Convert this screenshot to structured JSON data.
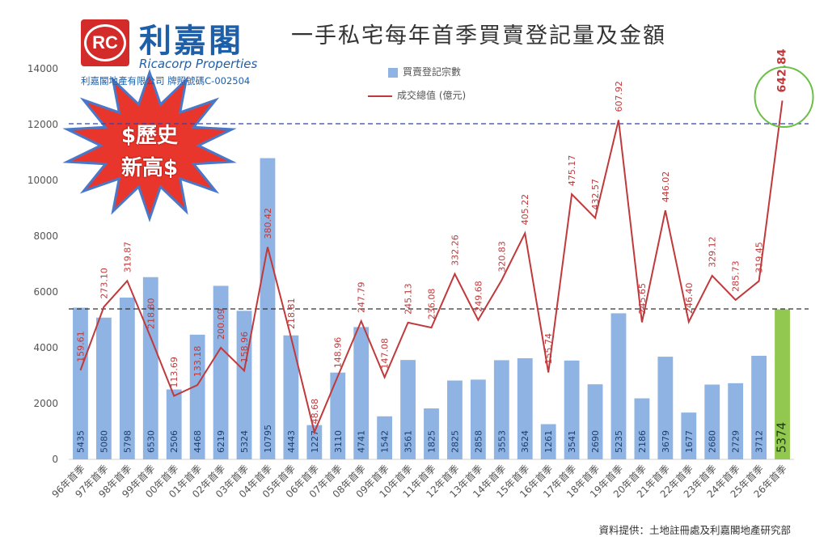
{
  "header": {
    "title": "一手私宅每年首季買賣登記量及金額",
    "logo_cn": "利嘉閣",
    "logo_rc": "RC",
    "logo_en": "Ricacorp Properties",
    "logo_license": "利嘉閣地產有限公司 牌照號碼C-002504"
  },
  "callout": {
    "text": "$歷史新高$",
    "line1": "$歷史",
    "line2": "新高$"
  },
  "source": "資料提供：土地註冊處及利嘉閣地產研究部",
  "colors": {
    "bar": "#8fb3e2",
    "bar_highlight": "#92c84f",
    "line": "#c0393b",
    "ref_line_top": "#3344aa",
    "ref_line_bottom": "#333333",
    "circle": "#6abf45",
    "burst": "#e8362c"
  },
  "chart_data": {
    "type": "bar",
    "title": "一手私宅每年首季買賣登記量及金額",
    "categories": [
      "96年首季",
      "97年首季",
      "98年首季",
      "99年首季",
      "00年首季",
      "01年首季",
      "02年首季",
      "03年首季",
      "04年首季",
      "05年首季",
      "06年首季",
      "07年首季",
      "08年首季",
      "09年首季",
      "10年首季",
      "11年首季",
      "12年首季",
      "13年首季",
      "14年首季",
      "15年首季",
      "16年首季",
      "17年首季",
      "18年首季",
      "19年首季",
      "20年首季",
      "21年首季",
      "22年首季",
      "23年首季",
      "24年首季",
      "25年首季",
      "26年首季"
    ],
    "ylim": [
      0,
      14000
    ],
    "yticks": [
      0,
      2000,
      4000,
      6000,
      8000,
      10000,
      12000,
      14000
    ],
    "grid": false,
    "legend_position": "top-center",
    "series": [
      {
        "name": "買賣登記宗數",
        "type": "bar",
        "values": [
          5435,
          5080,
          5798,
          6530,
          2506,
          4468,
          6219,
          5324,
          10795,
          4443,
          1227,
          3110,
          4741,
          1542,
          3561,
          1825,
          2825,
          2858,
          3553,
          3624,
          1261,
          3541,
          2690,
          5235,
          2186,
          3679,
          1677,
          2680,
          2729,
          3712,
          5374
        ],
        "labels": [
          "5435",
          "5080",
          "5798",
          "6530",
          "2506",
          "4468",
          "6219",
          "5324",
          "10795",
          "4443",
          "1227",
          "3110",
          "4741",
          "1542",
          "3561",
          "1825",
          "2825",
          "2858",
          "3553",
          "3624",
          "1261",
          "3541",
          "2690",
          "5235",
          "2186",
          "3679",
          "1677",
          "2680",
          "2729",
          "3712",
          "5374"
        ]
      },
      {
        "name": "成交總值 (億元)",
        "type": "line",
        "values": [
          159.61,
          273.1,
          319.87,
          218.8,
          113.69,
          133.18,
          200.09,
          158.96,
          380.42,
          218.81,
          48.68,
          148.96,
          247.79,
          147.08,
          245.13,
          236.08,
          332.26,
          249.68,
          320.83,
          405.22,
          155.74,
          475.17,
          432.57,
          607.92,
          245.65,
          446.02,
          246.4,
          329.12,
          285.73,
          319.45,
          642.84
        ],
        "labels": [
          "159.61",
          "273.10",
          "319.87",
          "218.80",
          "113.69",
          "133.18",
          "200.09",
          "158.96",
          "380.42",
          "218.81",
          "48.68",
          "148.96",
          "247.79",
          "147.08",
          "245.13",
          "236.08",
          "332.26",
          "249.68",
          "320.83",
          "405.22",
          "155.74",
          "475.17",
          "432.57",
          "607.92",
          "245.65",
          "446.02",
          "246.40",
          "329.12",
          "285.73",
          "319.45",
          "642.84"
        ]
      }
    ]
  }
}
